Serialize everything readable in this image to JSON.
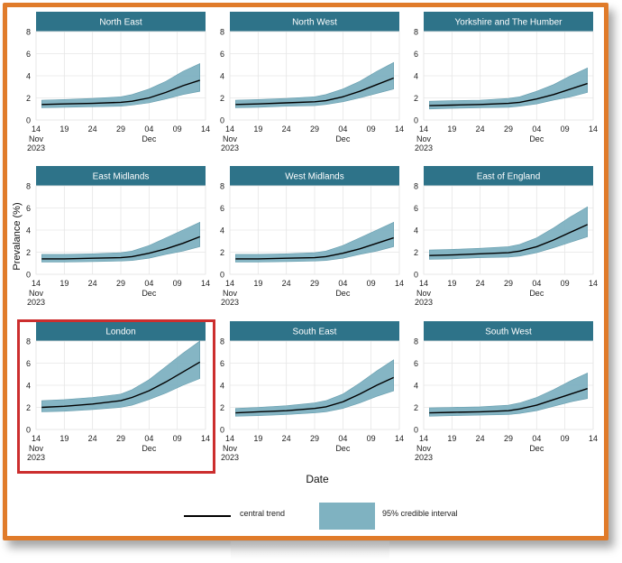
{
  "chart_data": {
    "type": "area",
    "shared": {
      "ylabel": "Prevalance (%)",
      "xlabel": "Date",
      "ylim": [
        0,
        8
      ],
      "y_ticks": [
        "0",
        "2",
        "4",
        "6",
        "8"
      ],
      "x_start": "2023-11-14",
      "x_end": "2023-12-14",
      "x_ticks": [
        {
          "date": "2023-11-14",
          "label": "14",
          "sub": [
            "Nov",
            "2023"
          ]
        },
        {
          "date": "2023-11-19",
          "label": "19",
          "sub": []
        },
        {
          "date": "2023-11-24",
          "label": "24",
          "sub": []
        },
        {
          "date": "2023-11-29",
          "label": "29",
          "sub": []
        },
        {
          "date": "2023-12-04",
          "label": "04",
          "sub": [
            "Dec"
          ]
        },
        {
          "date": "2023-12-09",
          "label": "09",
          "sub": []
        },
        {
          "date": "2023-12-14",
          "label": "14",
          "sub": []
        }
      ],
      "x": [
        "2023-11-15",
        "2023-11-19",
        "2023-11-24",
        "2023-11-29",
        "2023-12-01",
        "2023-12-04",
        "2023-12-07",
        "2023-12-10",
        "2023-12-13"
      ],
      "grid": true
    },
    "panels": [
      {
        "title": "North East",
        "central": [
          1.4,
          1.45,
          1.5,
          1.6,
          1.7,
          2.0,
          2.5,
          3.1,
          3.6
        ],
        "lower": [
          1.1,
          1.15,
          1.2,
          1.25,
          1.35,
          1.55,
          1.9,
          2.3,
          2.6
        ],
        "upper": [
          1.8,
          1.85,
          1.95,
          2.1,
          2.3,
          2.8,
          3.5,
          4.4,
          5.1
        ]
      },
      {
        "title": "North West",
        "central": [
          1.4,
          1.45,
          1.55,
          1.65,
          1.75,
          2.1,
          2.6,
          3.2,
          3.8
        ],
        "lower": [
          1.1,
          1.15,
          1.25,
          1.3,
          1.4,
          1.65,
          2.0,
          2.4,
          2.8
        ],
        "upper": [
          1.8,
          1.85,
          1.95,
          2.1,
          2.3,
          2.8,
          3.5,
          4.4,
          5.2
        ]
      },
      {
        "title": "Yorkshire and The Humber",
        "central": [
          1.3,
          1.35,
          1.4,
          1.5,
          1.6,
          1.9,
          2.3,
          2.8,
          3.3
        ],
        "lower": [
          1.0,
          1.05,
          1.1,
          1.15,
          1.25,
          1.45,
          1.8,
          2.1,
          2.5
        ],
        "upper": [
          1.7,
          1.75,
          1.8,
          1.95,
          2.1,
          2.6,
          3.2,
          4.0,
          4.7
        ]
      },
      {
        "title": "East Midlands",
        "central": [
          1.4,
          1.4,
          1.45,
          1.5,
          1.6,
          1.9,
          2.3,
          2.8,
          3.4
        ],
        "lower": [
          1.1,
          1.1,
          1.15,
          1.2,
          1.25,
          1.45,
          1.8,
          2.1,
          2.5
        ],
        "upper": [
          1.8,
          1.8,
          1.85,
          1.95,
          2.1,
          2.6,
          3.3,
          4.0,
          4.7
        ]
      },
      {
        "title": "West Midlands",
        "central": [
          1.4,
          1.4,
          1.45,
          1.5,
          1.6,
          1.9,
          2.3,
          2.8,
          3.3
        ],
        "lower": [
          1.1,
          1.1,
          1.15,
          1.2,
          1.25,
          1.45,
          1.8,
          2.1,
          2.5
        ],
        "upper": [
          1.8,
          1.8,
          1.85,
          1.95,
          2.1,
          2.6,
          3.3,
          4.0,
          4.7
        ]
      },
      {
        "title": "East of England",
        "central": [
          1.7,
          1.75,
          1.85,
          1.95,
          2.1,
          2.5,
          3.1,
          3.8,
          4.5
        ],
        "lower": [
          1.35,
          1.4,
          1.5,
          1.55,
          1.65,
          1.95,
          2.4,
          2.9,
          3.4
        ],
        "upper": [
          2.2,
          2.25,
          2.35,
          2.5,
          2.7,
          3.3,
          4.2,
          5.2,
          6.1
        ]
      },
      {
        "title": "London",
        "central": [
          2.0,
          2.1,
          2.3,
          2.6,
          2.9,
          3.5,
          4.3,
          5.2,
          6.1
        ],
        "lower": [
          1.6,
          1.65,
          1.8,
          2.0,
          2.2,
          2.7,
          3.3,
          4.0,
          4.6
        ],
        "upper": [
          2.6,
          2.7,
          2.9,
          3.2,
          3.6,
          4.5,
          5.7,
          6.9,
          8.0
        ]
      },
      {
        "title": "South East",
        "central": [
          1.5,
          1.6,
          1.7,
          1.9,
          2.05,
          2.5,
          3.2,
          4.0,
          4.7
        ],
        "lower": [
          1.2,
          1.25,
          1.35,
          1.5,
          1.6,
          1.9,
          2.4,
          3.0,
          3.5
        ],
        "upper": [
          1.9,
          2.0,
          2.15,
          2.4,
          2.6,
          3.2,
          4.2,
          5.3,
          6.3
        ]
      },
      {
        "title": "South West",
        "central": [
          1.5,
          1.55,
          1.6,
          1.7,
          1.85,
          2.2,
          2.7,
          3.2,
          3.7
        ],
        "lower": [
          1.2,
          1.25,
          1.3,
          1.35,
          1.45,
          1.7,
          2.1,
          2.5,
          2.8
        ],
        "upper": [
          1.95,
          2.0,
          2.05,
          2.2,
          2.4,
          2.9,
          3.6,
          4.4,
          5.1
        ]
      }
    ],
    "legend": {
      "trend_label": "central trend",
      "band_label": "95% credible interval",
      "placement": "bottom"
    },
    "colors": {
      "strip": "#2e7389",
      "band": "#7fb2c1",
      "line": "#000000",
      "highlight": "#cc2e2e",
      "frame": "#e07b2a"
    },
    "highlighted_panel": "London"
  }
}
